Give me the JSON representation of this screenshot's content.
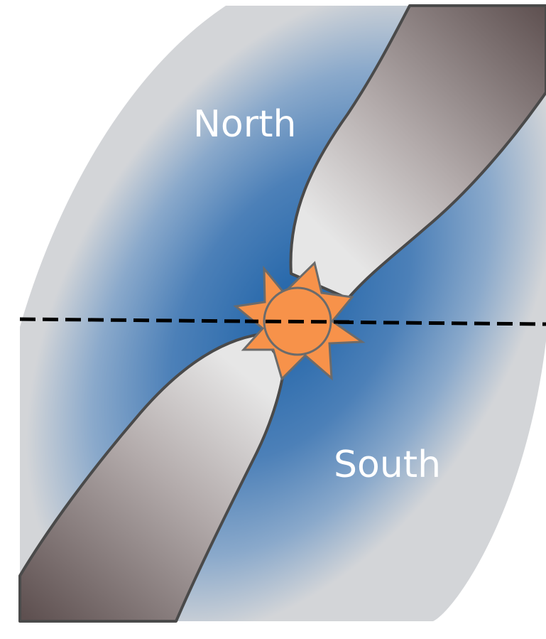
{
  "diagram": {
    "labels": {
      "north": "North",
      "south": "South"
    },
    "colors": {
      "disk_center": "#1f63a8",
      "disk_mid": "#6f98c4",
      "disk_edge": "#d3d5d8",
      "lobe_light": "#e6e6e6",
      "lobe_dark": "#5e5050",
      "outline": "#4a4a4a",
      "star_fill": "#f7924a",
      "star_outline": "#6b6b6b",
      "equator_line": "#000000"
    },
    "icons": {
      "center": "sun-icon"
    },
    "equator_style": "dashed"
  }
}
